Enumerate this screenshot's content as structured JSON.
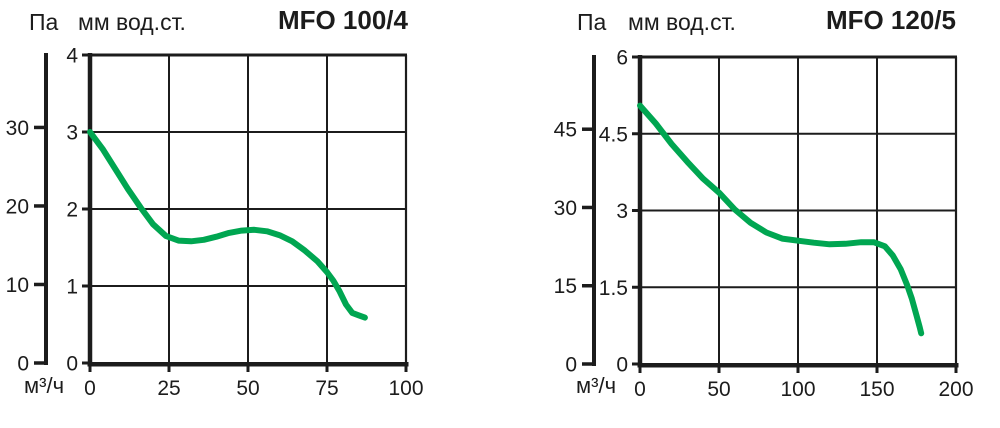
{
  "page": {
    "background": "#ffffff",
    "text_color": "#1c1c1c",
    "line_color": "#1c1c1c"
  },
  "chart_data": [
    {
      "type": "line",
      "title": "MFO 100/4",
      "pressure_axis_pa_label": "Па",
      "pressure_axis_mm_label": "мм вод.ст.",
      "flow_axis_label": "м³/ч",
      "pa_ticks": [
        0,
        10,
        20,
        30
      ],
      "mm_ticks": [
        0,
        1,
        2,
        3,
        4
      ],
      "x_ticks": [
        0,
        25,
        50,
        75,
        100
      ],
      "xlim": [
        0,
        100
      ],
      "mm_lim": [
        0,
        4
      ],
      "grid": true,
      "legend": "none",
      "curve_color": "#00A651",
      "series": [
        {
          "name": "MFO 100/4 pressure-flow curve",
          "x_m3h": [
            0,
            4,
            8,
            12,
            16,
            20,
            24,
            28,
            32,
            36,
            40,
            44,
            48,
            52,
            56,
            60,
            64,
            68,
            72,
            75,
            77,
            79,
            81,
            83,
            85,
            87
          ],
          "y_mm": [
            3.0,
            2.78,
            2.52,
            2.26,
            2.02,
            1.8,
            1.65,
            1.59,
            1.58,
            1.6,
            1.64,
            1.69,
            1.72,
            1.73,
            1.71,
            1.66,
            1.58,
            1.46,
            1.32,
            1.18,
            1.07,
            0.93,
            0.76,
            0.65,
            0.62,
            0.59
          ]
        }
      ]
    },
    {
      "type": "line",
      "title": "MFO 120/5",
      "pressure_axis_pa_label": "Па",
      "pressure_axis_mm_label": "мм вод.ст.",
      "flow_axis_label": "м³/ч",
      "pa_ticks": [
        0,
        15,
        30,
        45
      ],
      "mm_ticks": [
        0,
        1.5,
        3,
        4.5,
        6
      ],
      "x_ticks": [
        0,
        50,
        100,
        150,
        200
      ],
      "xlim": [
        0,
        200
      ],
      "mm_lim": [
        0,
        6
      ],
      "grid": true,
      "legend": "none",
      "curve_color": "#00A651",
      "series": [
        {
          "name": "MFO 120/5 pressure-flow curve",
          "x_m3h": [
            0,
            10,
            20,
            30,
            40,
            50,
            60,
            70,
            80,
            90,
            100,
            110,
            120,
            130,
            140,
            148,
            155,
            160,
            165,
            169,
            172,
            175,
            177,
            178
          ],
          "y_mm": [
            5.05,
            4.7,
            4.3,
            3.95,
            3.62,
            3.35,
            3.02,
            2.76,
            2.57,
            2.45,
            2.41,
            2.37,
            2.34,
            2.35,
            2.38,
            2.38,
            2.3,
            2.12,
            1.85,
            1.55,
            1.28,
            0.95,
            0.72,
            0.6
          ]
        }
      ]
    }
  ]
}
